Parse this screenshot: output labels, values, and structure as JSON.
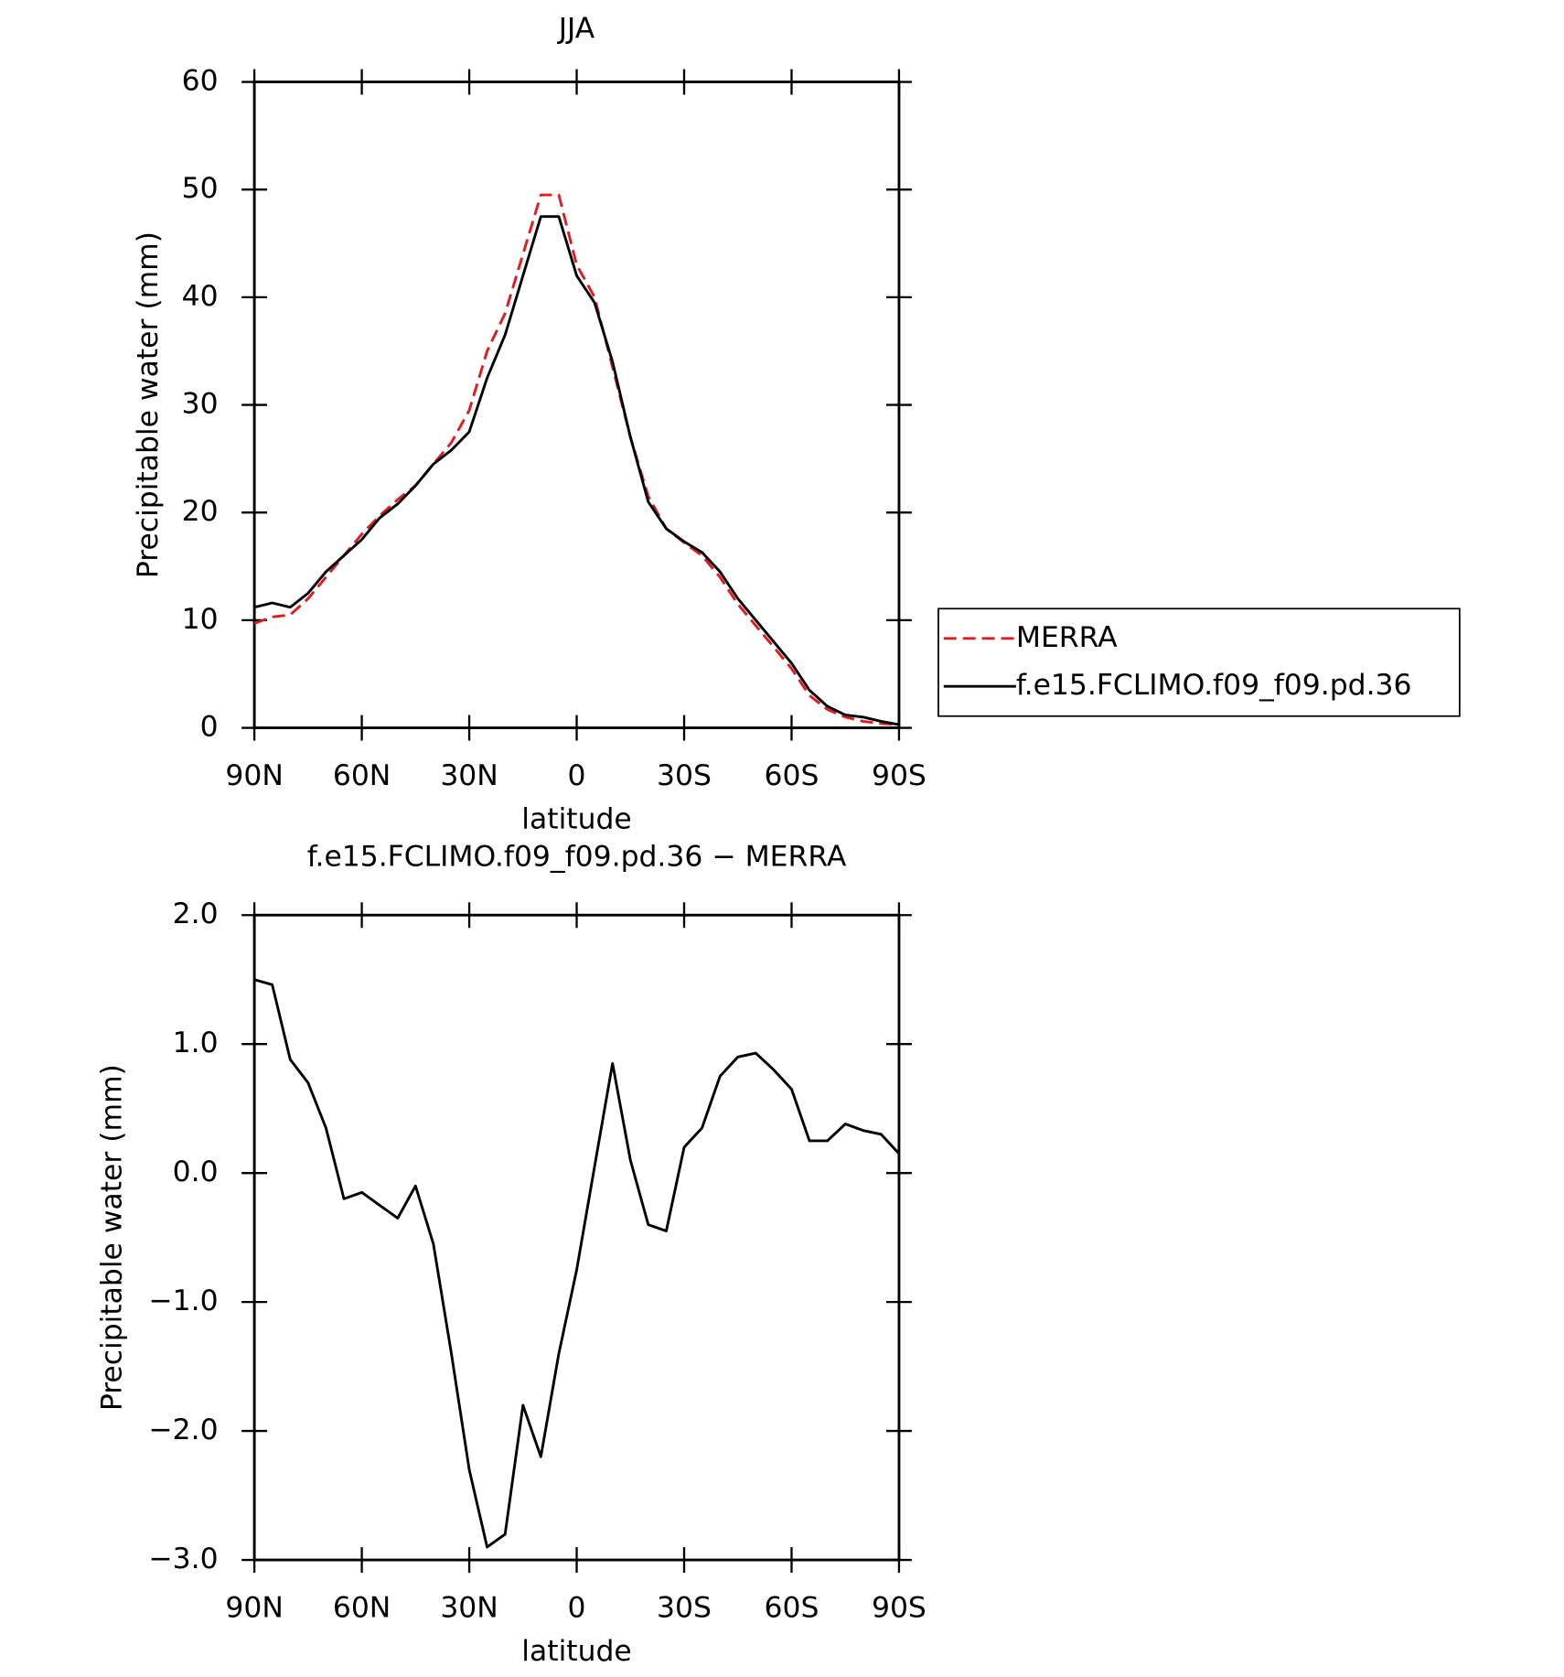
{
  "chart_data": [
    {
      "type": "line",
      "title": "JJA",
      "xlabel": "latitude",
      "ylabel": "Precipitable water (mm)",
      "x": [
        90,
        85,
        80,
        75,
        70,
        65,
        60,
        55,
        50,
        45,
        40,
        35,
        30,
        25,
        20,
        15,
        10,
        5,
        0,
        -5,
        -10,
        -15,
        -20,
        -25,
        -30,
        -35,
        -40,
        -45,
        -50,
        -55,
        -60,
        -65,
        -70,
        -75,
        -80,
        -85,
        -90
      ],
      "series": [
        {
          "name": "MERRA",
          "color": "#e41a1c",
          "dash": true,
          "values": [
            9.7,
            10.3,
            10.5,
            12,
            14,
            16,
            18,
            19.7,
            21.2,
            22.5,
            24.5,
            26.5,
            29.5,
            35,
            38.5,
            44,
            49.5,
            49.5,
            43,
            40,
            33.5,
            27,
            21.5,
            18.5,
            17.2,
            16,
            14,
            11.5,
            9.5,
            7.5,
            5.5,
            3,
            1.7,
            1,
            0.6,
            0.4,
            0.3
          ]
        },
        {
          "name": "f.e15.FCLIMO.f09_f09.pd.36",
          "color": "#000000",
          "dash": false,
          "values": [
            11.2,
            11.6,
            11.2,
            12.5,
            14.5,
            16,
            17.5,
            19.5,
            20.8,
            22.5,
            24.5,
            25.8,
            27.5,
            32.5,
            36.5,
            42,
            47.5,
            47.5,
            42,
            39.5,
            34,
            27,
            21,
            18.5,
            17.3,
            16.3,
            14.5,
            12,
            10,
            8,
            6,
            3.5,
            2,
            1.2,
            1,
            0.6,
            0.3
          ]
        }
      ],
      "xlim": [
        90,
        -90
      ],
      "xticks": [
        {
          "value": 90,
          "label": "90N"
        },
        {
          "value": 60,
          "label": "60N"
        },
        {
          "value": 30,
          "label": "30N"
        },
        0,
        {
          "value": -30,
          "label": "30S"
        },
        {
          "value": -60,
          "label": "60S"
        },
        {
          "value": -90,
          "label": "90S"
        }
      ],
      "ylim": [
        0,
        60
      ],
      "yticks": [
        0,
        10,
        20,
        30,
        40,
        50,
        60
      ],
      "legend": "right"
    },
    {
      "type": "line",
      "title": "f.e15.FCLIMO.f09_f09.pd.36 − MERRA",
      "xlabel": "latitude",
      "ylabel": "Precipitable water (mm)",
      "x": [
        90,
        85,
        80,
        75,
        70,
        65,
        60,
        55,
        50,
        45,
        40,
        35,
        30,
        25,
        20,
        15,
        10,
        5,
        0,
        -5,
        -10,
        -15,
        -20,
        -25,
        -30,
        -35,
        -40,
        -45,
        -50,
        -55,
        -60,
        -65,
        -70,
        -75,
        -80,
        -85,
        -90
      ],
      "series": [
        {
          "color": "#000000",
          "dash": false,
          "values": [
            1.5,
            1.46,
            0.88,
            0.7,
            0.35,
            -0.2,
            -0.15,
            -0.25,
            -0.35,
            -0.1,
            -0.55,
            -1.4,
            -2.3,
            -2.9,
            -2.8,
            -1.8,
            -2.2,
            -1.4,
            -0.75,
            0.05,
            0.85,
            0.1,
            -0.4,
            -0.45,
            0.2,
            0.35,
            0.75,
            0.9,
            0.93,
            0.8,
            0.65,
            0.25,
            0.25,
            0.38,
            0.33,
            0.3,
            0.15
          ]
        }
      ],
      "xlim": [
        90,
        -90
      ],
      "xticks": [
        {
          "value": 90,
          "label": "90N"
        },
        {
          "value": 60,
          "label": "60N"
        },
        {
          "value": 30,
          "label": "30N"
        },
        0,
        {
          "value": -30,
          "label": "30S"
        },
        {
          "value": -60,
          "label": "60S"
        },
        {
          "value": -90,
          "label": "90S"
        }
      ],
      "ylim": [
        -3,
        2
      ],
      "yticks": [
        {
          "value": -3,
          "label": "−3.0"
        },
        {
          "value": -2,
          "label": "−2.0"
        },
        {
          "value": -1,
          "label": "−1.0"
        },
        {
          "value": 0,
          "label": "0.0"
        },
        {
          "value": 1,
          "label": "1.0"
        },
        {
          "value": 2,
          "label": "2.0"
        }
      ]
    }
  ]
}
